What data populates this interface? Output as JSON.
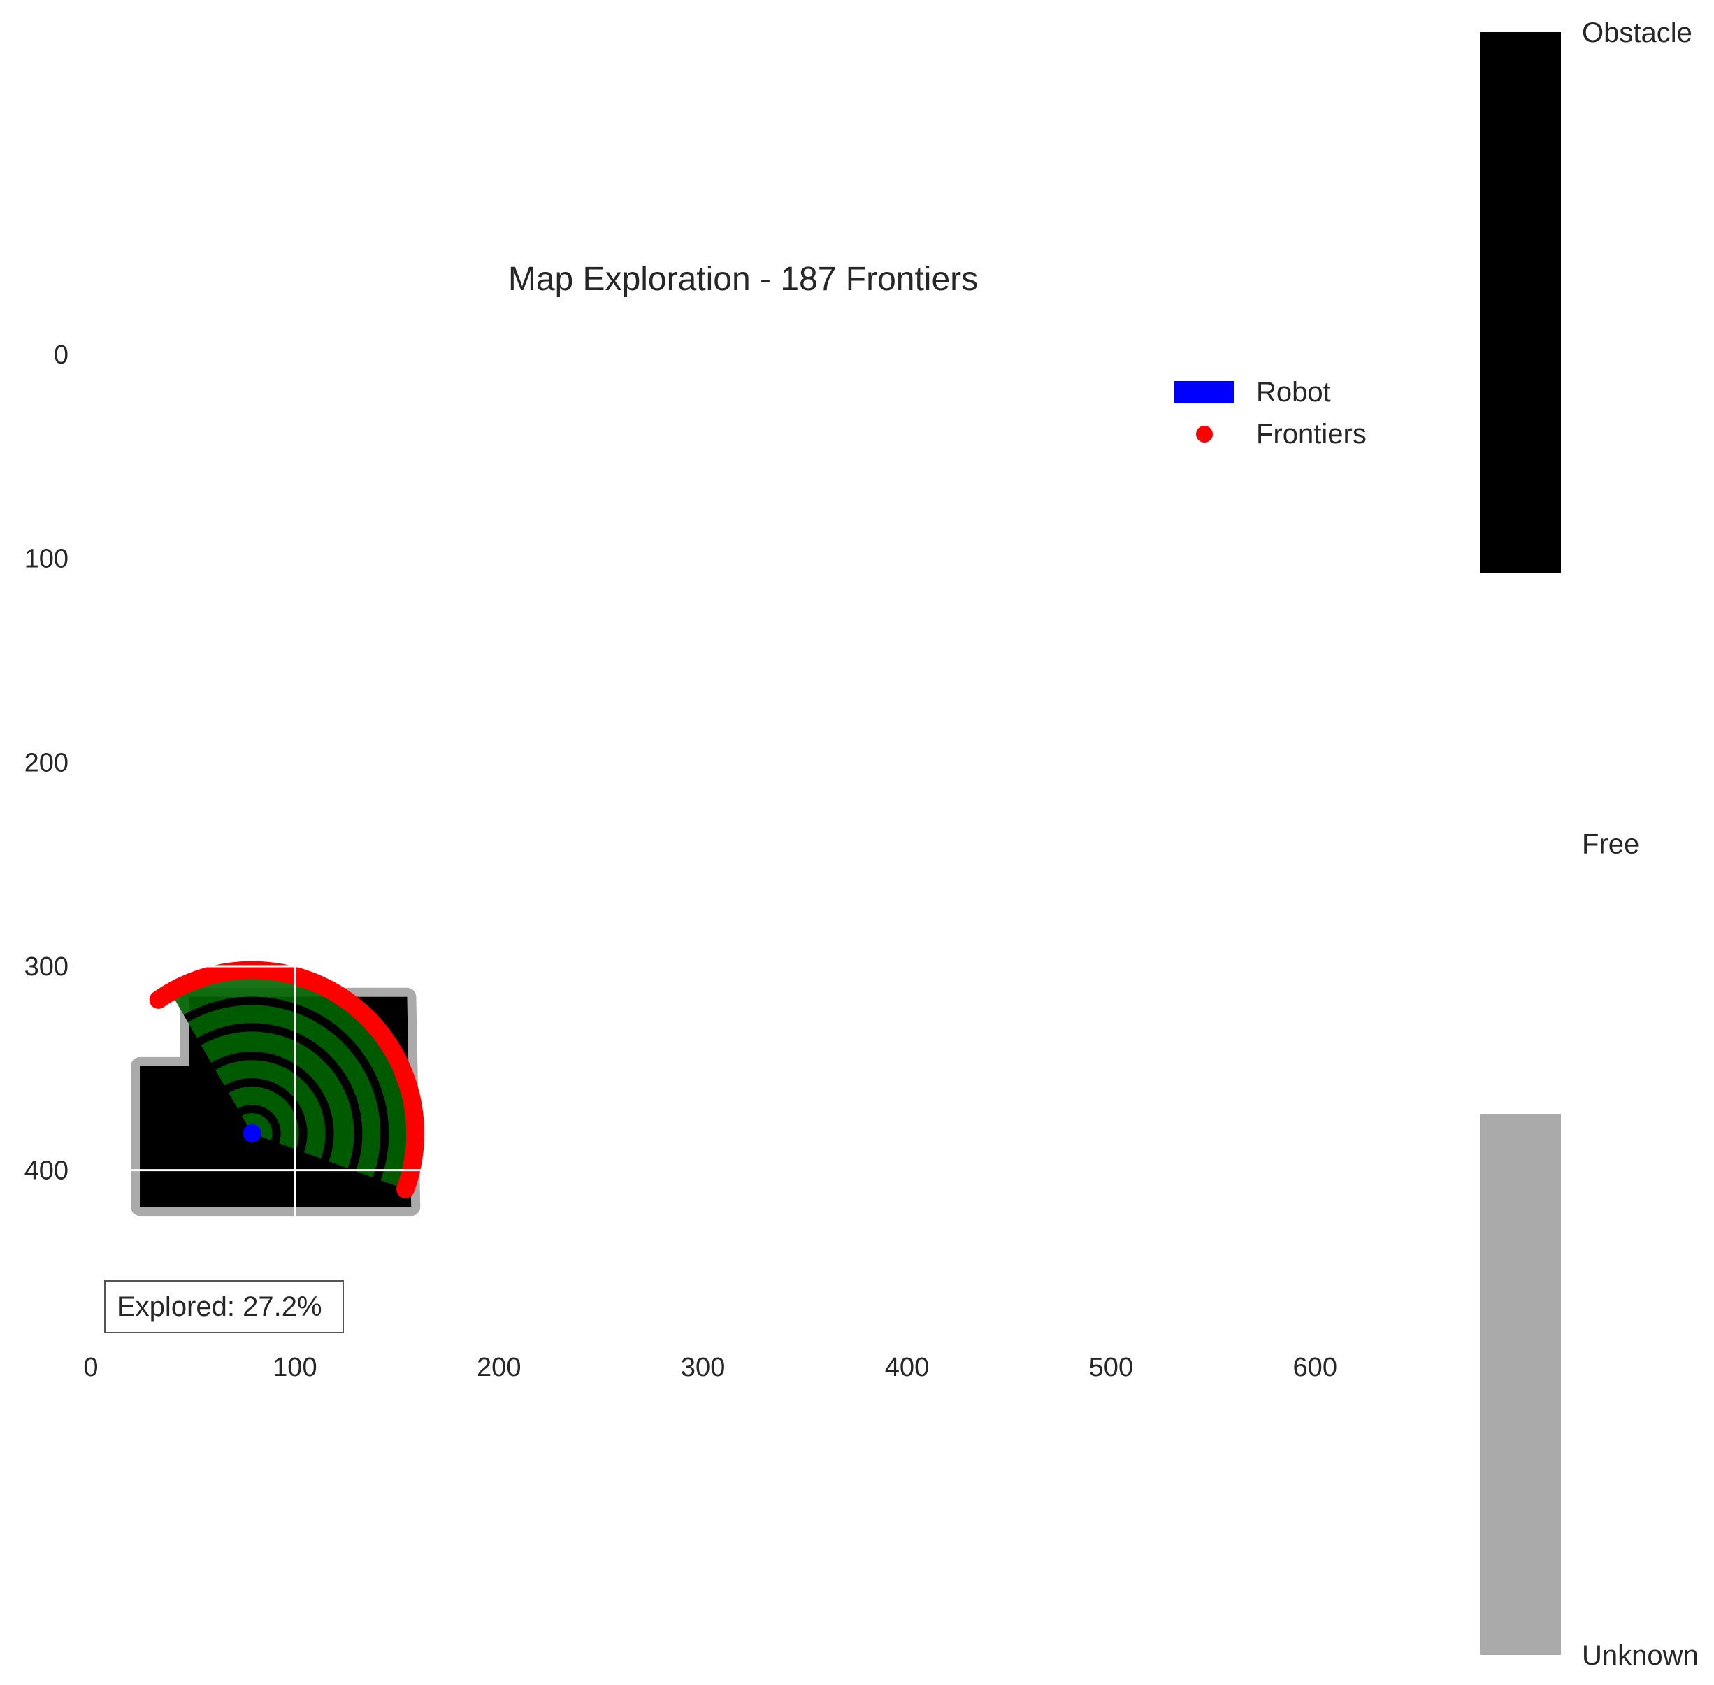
{
  "chart_data": {
    "type": "heatmap",
    "title": "Map Exploration - 187 Frontiers",
    "xlabel": "",
    "ylabel": "",
    "xlim": [
      0,
      640
    ],
    "ylim": [
      480,
      0
    ],
    "x_ticks": [
      0,
      100,
      200,
      300,
      400,
      500,
      600
    ],
    "y_ticks": [
      0,
      100,
      200,
      300,
      400
    ],
    "grid": true,
    "grid_color": "#ffffff",
    "legend": {
      "placement": "top-right",
      "entries": [
        {
          "label": "Robot",
          "color": "#0000ff",
          "marker": "patch"
        },
        {
          "label": "Frontiers",
          "color": "#ff0000",
          "marker": "circle"
        }
      ]
    },
    "annotation": "Explored: 27.2%",
    "colorbar": {
      "labels": [
        "Obstacle",
        "Free",
        "Unknown"
      ],
      "colors": {
        "Obstacle": "#000000",
        "Free": "#ffffff",
        "Unknown": "#aaaaaa"
      }
    },
    "robot": {
      "x": 79,
      "y": 382
    },
    "sensor": {
      "max_range": 80,
      "angle_start_deg": -20,
      "angle_end_deg": 120,
      "fill_color": "#006400",
      "ring_color": "#000000",
      "ring_radii": [
        12,
        25,
        38,
        52,
        65
      ]
    },
    "explored_region": [
      [
        24,
        349
      ],
      [
        48,
        349
      ],
      [
        48,
        315
      ],
      [
        100,
        315
      ],
      [
        155,
        315
      ],
      [
        157,
        418
      ],
      [
        24,
        418
      ]
    ],
    "frontier_count": 187,
    "frontier_arc": {
      "center_x": 79,
      "center_y": 382,
      "radius": 80,
      "angle_start_deg": -20,
      "angle_end_deg": 125
    }
  }
}
